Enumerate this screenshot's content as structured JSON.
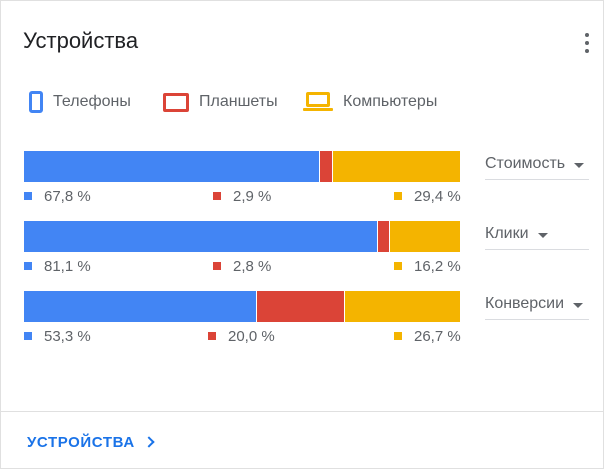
{
  "card": {
    "title": "Устройства",
    "footer_link": "УСТРОЙСТВА"
  },
  "legend": [
    {
      "name": "Телефоны",
      "icon": "phone-icon",
      "color": "#4285f4"
    },
    {
      "name": "Планшеты",
      "icon": "tablet-icon",
      "color": "#db4437"
    },
    {
      "name": "Компьютеры",
      "icon": "laptop-icon",
      "color": "#f4b400"
    }
  ],
  "chart_data": {
    "type": "bar",
    "stacked": true,
    "orientation": "horizontal",
    "normalized_percent": true,
    "title": "Устройства",
    "categories": [
      "Стоимость",
      "Клики",
      "Конверсии"
    ],
    "series": [
      {
        "name": "Телефоны",
        "color": "#4285f4",
        "values": [
          67.8,
          81.1,
          53.3
        ],
        "labels": [
          "67,8 %",
          "81,1 %",
          "53,3 %"
        ]
      },
      {
        "name": "Планшеты",
        "color": "#db4437",
        "values": [
          2.9,
          2.8,
          20.0
        ],
        "labels": [
          "2,9 %",
          "2,8 %",
          "20,0 %"
        ]
      },
      {
        "name": "Компьютеры",
        "color": "#f4b400",
        "values": [
          29.4,
          16.2,
          26.7
        ],
        "labels": [
          "29,4 %",
          "16,2 %",
          "26,7 %"
        ]
      }
    ],
    "xlim": [
      0,
      100
    ],
    "grid": false,
    "legend_position": "top-left"
  }
}
